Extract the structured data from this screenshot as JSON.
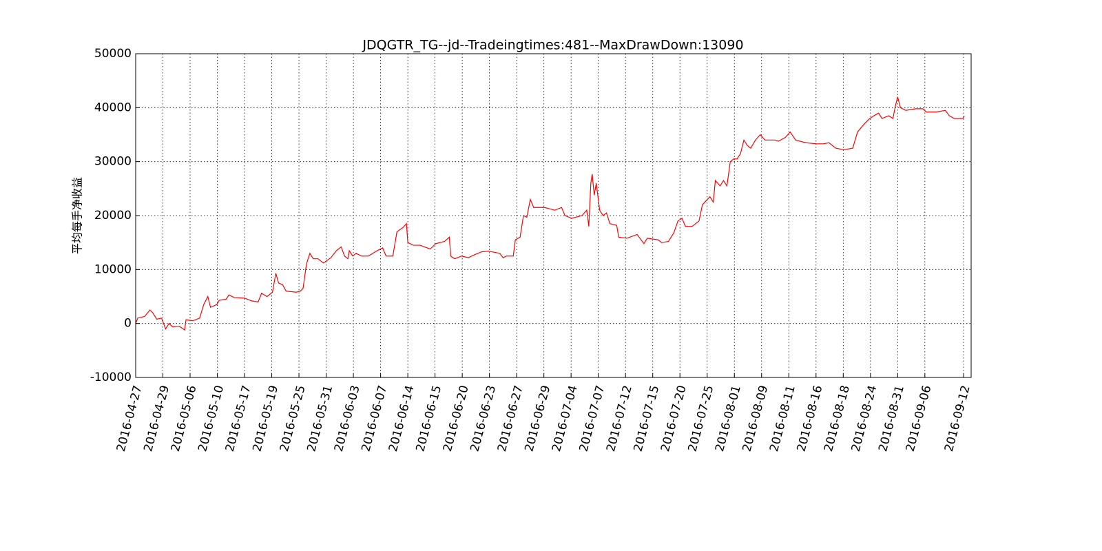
{
  "chart_data": {
    "type": "line",
    "title": "JDQGTR_TG--jd--Tradeingtimes:481--MaxDrawDown:13090",
    "y_label": "平均每手净收益",
    "xlim": [
      0,
      1228
    ],
    "ylim": [
      -10000,
      50000
    ],
    "yticks": [
      -10000,
      0,
      10000,
      20000,
      30000,
      40000,
      50000
    ],
    "xticks": [
      {
        "value": 0,
        "label": "2016-04-27"
      },
      {
        "value": 40,
        "label": "2016-04-29"
      },
      {
        "value": 80,
        "label": "2016-05-06"
      },
      {
        "value": 120,
        "label": "2016-05-10"
      },
      {
        "value": 160,
        "label": "2016-05-17"
      },
      {
        "value": 200,
        "label": "2016-05-19"
      },
      {
        "value": 240,
        "label": "2016-05-25"
      },
      {
        "value": 280,
        "label": "2016-05-31"
      },
      {
        "value": 320,
        "label": "2016-06-03"
      },
      {
        "value": 360,
        "label": "2016-06-07"
      },
      {
        "value": 400,
        "label": "2016-06-14"
      },
      {
        "value": 440,
        "label": "2016-06-15"
      },
      {
        "value": 480,
        "label": "2016-06-20"
      },
      {
        "value": 520,
        "label": "2016-06-23"
      },
      {
        "value": 560,
        "label": "2016-06-27"
      },
      {
        "value": 600,
        "label": "2016-06-29"
      },
      {
        "value": 640,
        "label": "2016-07-04"
      },
      {
        "value": 680,
        "label": "2016-07-07"
      },
      {
        "value": 720,
        "label": "2016-07-12"
      },
      {
        "value": 760,
        "label": "2016-07-15"
      },
      {
        "value": 800,
        "label": "2016-07-20"
      },
      {
        "value": 840,
        "label": "2016-07-25"
      },
      {
        "value": 880,
        "label": "2016-08-01"
      },
      {
        "value": 920,
        "label": "2016-08-09"
      },
      {
        "value": 960,
        "label": "2016-08-11"
      },
      {
        "value": 1000,
        "label": "2016-08-16"
      },
      {
        "value": 1040,
        "label": "2016-08-18"
      },
      {
        "value": 1080,
        "label": "2016-08-24"
      },
      {
        "value": 1120,
        "label": "2016-08-31"
      },
      {
        "value": 1160,
        "label": "2016-09-06"
      },
      {
        "value": 1217,
        "label": "2016-09-12"
      }
    ],
    "grid": true,
    "series": [
      {
        "color": "#ff0000",
        "x": [
          0,
          3,
          13,
          21,
          25,
          31,
          38,
          44,
          49,
          54,
          64,
          72,
          74,
          84,
          94,
          100,
          106,
          110,
          119,
          123,
          133,
          137,
          145,
          160,
          170,
          180,
          185,
          193,
          201,
          206,
          210,
          216,
          221,
          236,
          242,
          246,
          251,
          256,
          261,
          268,
          276,
          287,
          295,
          302,
          307,
          312,
          314,
          319,
          324,
          332,
          342,
          355,
          363,
          368,
          378,
          384,
          393,
          398,
          400,
          408,
          418,
          433,
          441,
          454,
          461,
          463,
          469,
          479,
          489,
          499,
          509,
          519,
          535,
          540,
          545,
          555,
          558,
          565,
          570,
          575,
          580,
          585,
          601,
          616,
          626,
          631,
          641,
          656,
          663,
          666,
          669,
          671,
          674,
          677,
          682,
          687,
          692,
          697,
          707,
          710,
          722,
          737,
          747,
          752,
          768,
          773,
          783,
          791,
          797,
          803,
          808,
          818,
          828,
          833,
          844,
          849,
          852,
          859,
          864,
          869,
          874,
          879,
          884,
          889,
          894,
          899,
          904,
          911,
          918,
          925,
          940,
          945,
          955,
          962,
          970,
          985,
          1001,
          1011,
          1019,
          1029,
          1041,
          1054,
          1061,
          1071,
          1079,
          1085,
          1092,
          1097,
          1107,
          1113,
          1117,
          1120,
          1124,
          1132,
          1147,
          1157,
          1162,
          1177,
          1190,
          1196,
          1203,
          1216,
          1218
        ],
        "values": [
          0,
          1000,
          1300,
          2500,
          2000,
          800,
          1000,
          -1000,
          0,
          -600,
          -500,
          -1200,
          700,
          500,
          1000,
          3500,
          5000,
          3000,
          3500,
          4300,
          4500,
          5300,
          4800,
          4700,
          4200,
          4000,
          5600,
          5000,
          5800,
          9300,
          7500,
          7200,
          6000,
          5800,
          6000,
          6500,
          11000,
          13000,
          12000,
          12000,
          11200,
          12200,
          13500,
          14200,
          12500,
          12000,
          13500,
          12500,
          13000,
          12500,
          12500,
          13500,
          14000,
          12500,
          12500,
          17000,
          17800,
          18500,
          15000,
          14500,
          14500,
          13800,
          14800,
          15200,
          16000,
          12500,
          12000,
          12500,
          12200,
          12800,
          13300,
          13400,
          13000,
          12200,
          12500,
          12500,
          15500,
          16000,
          20000,
          19700,
          23000,
          21500,
          21500,
          21000,
          21500,
          20000,
          19500,
          20000,
          21000,
          18000,
          26000,
          27700,
          23800,
          26000,
          21000,
          20000,
          20500,
          18500,
          18200,
          16000,
          15800,
          16500,
          14800,
          15800,
          15500,
          15000,
          15200,
          16800,
          19000,
          19500,
          18000,
          18000,
          19000,
          22000,
          23500,
          22500,
          26500,
          25500,
          26500,
          25500,
          30000,
          30500,
          30500,
          31500,
          34000,
          33000,
          32500,
          34000,
          35000,
          34000,
          34000,
          33800,
          34500,
          35500,
          34000,
          33500,
          33300,
          33300,
          33500,
          32500,
          32200,
          32500,
          35500,
          37000,
          38000,
          38500,
          39000,
          38000,
          38500,
          38000,
          40500,
          42000,
          40000,
          39500,
          39800,
          39800,
          39200,
          39200,
          39500,
          38500,
          38000,
          38000,
          38500
        ]
      }
    ]
  }
}
